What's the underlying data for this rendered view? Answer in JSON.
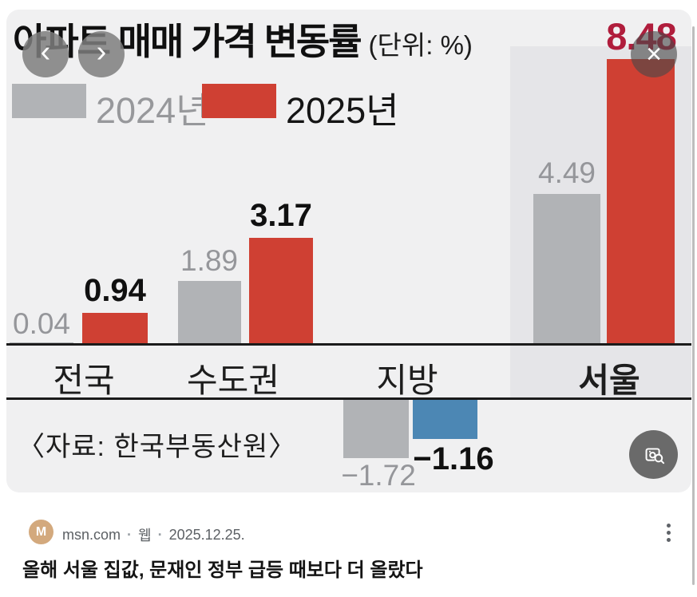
{
  "viewer": {
    "prev_label": "‹",
    "next_label": "›",
    "close_label": "×"
  },
  "chart": {
    "title": "아파트 매매 가격 변동률",
    "unit_label": "(단위: %)",
    "source": "〈자료: 한국부동산원〉",
    "legend": [
      {
        "label": "2024년"
      },
      {
        "label": "2025년"
      }
    ],
    "colors": {
      "background": "#f0f0f1",
      "seoul_highlight": "#e5e5e8",
      "bar_2024": "#b1b3b6",
      "bar_2025": "#cf4033",
      "bar_2025_negative": "#4c87b4",
      "seoul_2025_value_label": "#b01d3c",
      "gray_value_label": "#95969a"
    },
    "chart_data": {
      "type": "bar",
      "title": "아파트 매매 가격 변동률",
      "unit": "%",
      "categories": [
        "전국",
        "수도권",
        "지방",
        "서울"
      ],
      "series": [
        {
          "name": "2024년",
          "color": "#b1b3b6",
          "values": [
            0.04,
            1.89,
            -1.72,
            4.49
          ],
          "labels": [
            "0.04",
            "1.89",
            "−1.72",
            "4.49"
          ]
        },
        {
          "name": "2025년",
          "color": "#cf4033",
          "negative_color": "#4c87b4",
          "values": [
            0.94,
            3.17,
            -1.16,
            8.48
          ],
          "labels": [
            "0.94",
            "3.17",
            "−1.16",
            "8.48"
          ]
        }
      ],
      "highlighted_category": "서울",
      "ylim": [
        -2,
        9
      ],
      "legend_position": "top-left",
      "grid": false,
      "source": "한국부동산원"
    }
  },
  "footer": {
    "avatar_letter": "M",
    "domain": "msn.com",
    "separator": "·",
    "result_type": "웹",
    "date": "2025.12.25.",
    "headline": "올해 서울 집값, 문재인 정부 급등 때보다 더 올랐다"
  }
}
